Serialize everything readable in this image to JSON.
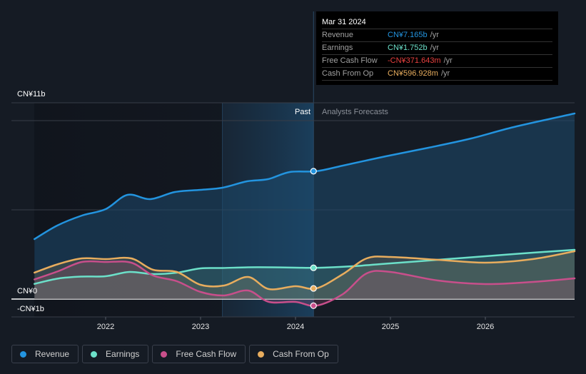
{
  "tooltip": {
    "date": "Mar 31 2024",
    "rows": [
      {
        "label": "Revenue",
        "value": "CN¥7.165b",
        "unit": "/yr",
        "color": "#2394df"
      },
      {
        "label": "Earnings",
        "value": "CN¥1.752b",
        "unit": "/yr",
        "color": "#6ce0c9"
      },
      {
        "label": "Free Cash Flow",
        "value": "-CN¥371.643m",
        "unit": "/yr",
        "color": "#e8413f"
      },
      {
        "label": "Cash From Op",
        "value": "CN¥596.928m",
        "unit": "/yr",
        "color": "#e8ad5e"
      }
    ]
  },
  "legend": [
    {
      "label": "Revenue",
      "color": "#2394df"
    },
    {
      "label": "Earnings",
      "color": "#6ce0c9"
    },
    {
      "label": "Free Cash Flow",
      "color": "#c84f8b"
    },
    {
      "label": "Cash From Op",
      "color": "#e8ad5e"
    }
  ],
  "chart_data": {
    "type": "line",
    "title": "",
    "xlabel": "",
    "ylabel": "",
    "currency": "CN¥",
    "units": "billions",
    "ylim": [
      -1,
      11
    ],
    "xlim": [
      2021.25,
      2026.94
    ],
    "y_tick_labels": [
      {
        "value": 11,
        "label": "CN¥11b"
      },
      {
        "value": 0,
        "label": "CN¥0"
      },
      {
        "value": -1,
        "label": "-CN¥1b"
      }
    ],
    "gridlines": [
      11,
      10,
      5,
      0,
      -1
    ],
    "x_ticks": [
      {
        "value": 2022,
        "label": "2022"
      },
      {
        "value": 2023,
        "label": "2023"
      },
      {
        "value": 2024,
        "label": "2024"
      },
      {
        "value": 2025,
        "label": "2025"
      },
      {
        "value": 2026,
        "label": "2026"
      }
    ],
    "past_label": "Past",
    "forecast_label": "Analysts Forecasts",
    "highlight_start": 2023.23,
    "divider_x": 2024.22,
    "legend_position": "bottom-left",
    "series": [
      {
        "name": "Revenue",
        "color": "#2394df",
        "points": [
          [
            2021.25,
            3.36
          ],
          [
            2021.49,
            4.12
          ],
          [
            2021.75,
            4.68
          ],
          [
            2022.0,
            5.04
          ],
          [
            2022.23,
            5.84
          ],
          [
            2022.47,
            5.6
          ],
          [
            2022.73,
            6.0
          ],
          [
            2023.0,
            6.12
          ],
          [
            2023.23,
            6.24
          ],
          [
            2023.49,
            6.6
          ],
          [
            2023.71,
            6.72
          ],
          [
            2023.94,
            7.12
          ],
          [
            2024.22,
            7.165
          ],
          [
            2024.5,
            7.48
          ],
          [
            2024.95,
            8.0
          ],
          [
            2025.4,
            8.48
          ],
          [
            2025.85,
            9.0
          ],
          [
            2026.3,
            9.64
          ],
          [
            2026.94,
            10.4
          ]
        ]
      },
      {
        "name": "Earnings",
        "color": "#6ce0c9",
        "points": [
          [
            2021.25,
            0.85
          ],
          [
            2021.5,
            1.15
          ],
          [
            2021.75,
            1.26
          ],
          [
            2022.0,
            1.28
          ],
          [
            2022.25,
            1.52
          ],
          [
            2022.5,
            1.4
          ],
          [
            2022.75,
            1.48
          ],
          [
            2023.0,
            1.72
          ],
          [
            2023.23,
            1.74
          ],
          [
            2023.5,
            1.78
          ],
          [
            2023.75,
            1.78
          ],
          [
            2024.0,
            1.76
          ],
          [
            2024.22,
            1.752
          ],
          [
            2024.6,
            1.84
          ],
          [
            2025.0,
            2.0
          ],
          [
            2025.5,
            2.2
          ],
          [
            2026.0,
            2.4
          ],
          [
            2026.5,
            2.6
          ],
          [
            2026.94,
            2.76
          ]
        ]
      },
      {
        "name": "Free Cash Flow",
        "color": "#c84f8b",
        "points": [
          [
            2021.25,
            1.1
          ],
          [
            2021.5,
            1.56
          ],
          [
            2021.75,
            2.08
          ],
          [
            2022.0,
            2.08
          ],
          [
            2022.27,
            2.04
          ],
          [
            2022.5,
            1.32
          ],
          [
            2022.75,
            1.0
          ],
          [
            2023.0,
            0.4
          ],
          [
            2023.25,
            0.2
          ],
          [
            2023.5,
            0.48
          ],
          [
            2023.72,
            -0.16
          ],
          [
            2024.0,
            -0.16
          ],
          [
            2024.22,
            -0.372
          ],
          [
            2024.5,
            0.28
          ],
          [
            2024.75,
            1.44
          ],
          [
            2025.0,
            1.52
          ],
          [
            2025.5,
            1.04
          ],
          [
            2026.0,
            0.84
          ],
          [
            2026.5,
            0.96
          ],
          [
            2026.94,
            1.16
          ]
        ]
      },
      {
        "name": "Cash From Op",
        "color": "#e8ad5e",
        "points": [
          [
            2021.25,
            1.48
          ],
          [
            2021.5,
            1.96
          ],
          [
            2021.75,
            2.28
          ],
          [
            2022.0,
            2.24
          ],
          [
            2022.27,
            2.28
          ],
          [
            2022.5,
            1.64
          ],
          [
            2022.75,
            1.52
          ],
          [
            2023.0,
            0.8
          ],
          [
            2023.25,
            0.76
          ],
          [
            2023.5,
            1.24
          ],
          [
            2023.72,
            0.56
          ],
          [
            2024.0,
            0.72
          ],
          [
            2024.22,
            0.597
          ],
          [
            2024.5,
            1.4
          ],
          [
            2024.75,
            2.28
          ],
          [
            2025.0,
            2.36
          ],
          [
            2025.5,
            2.2
          ],
          [
            2026.0,
            2.04
          ],
          [
            2026.5,
            2.24
          ],
          [
            2026.94,
            2.68
          ]
        ]
      }
    ]
  }
}
